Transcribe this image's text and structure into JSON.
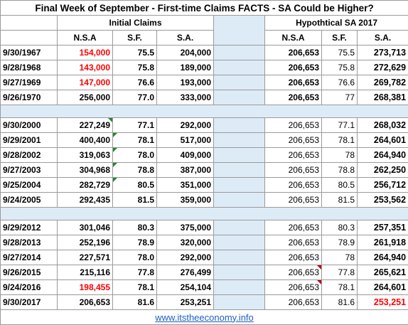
{
  "title": "Final Week of September - First-time Claims FACTS - SA Could be Higher?",
  "groups": {
    "initial": "Initial Claims",
    "hypothetical": "Hypothtical SA 2017"
  },
  "columns": {
    "nsa": "N.S.A",
    "sf": "S.F.",
    "sa": "S.A."
  },
  "sections": [
    [
      {
        "date": "9/30/1967",
        "nsa": "154,000",
        "sf": "75.5",
        "sa": "204,000",
        "h_nsa": "206,653",
        "h_sf": "75.5",
        "h_sa": "273,713"
      },
      {
        "date": "9/28/1968",
        "nsa": "143,000",
        "sf": "75.8",
        "sa": "189,000",
        "h_nsa": "206,653",
        "h_sf": "75.8",
        "h_sa": "272,629"
      },
      {
        "date": "9/27/1969",
        "nsa": "147,000",
        "sf": "76.6",
        "sa": "193,000",
        "h_nsa": "206,653",
        "h_sf": "76.6",
        "h_sa": "269,782"
      },
      {
        "date": "9/26/1970",
        "nsa": "256,000",
        "sf": "77.0",
        "sa": "333,000",
        "h_nsa": "206,653",
        "h_sf": "77",
        "h_sa": "268,381"
      }
    ],
    [
      {
        "date": "9/30/2000",
        "nsa": "227,249",
        "sf": "77.1",
        "sa": "292,000",
        "h_nsa": "206,653",
        "h_sf": "77.1",
        "h_sa": "268,032"
      },
      {
        "date": "9/29/2001",
        "nsa": "400,400",
        "sf": "78.1",
        "sa": "517,000",
        "h_nsa": "206,653",
        "h_sf": "78.1",
        "h_sa": "264,601"
      },
      {
        "date": "9/28/2002",
        "nsa": "319,063",
        "sf": "78.0",
        "sa": "409,000",
        "h_nsa": "206,653",
        "h_sf": "78",
        "h_sa": "264,940"
      },
      {
        "date": "9/27/2003",
        "nsa": "304,968",
        "sf": "78.8",
        "sa": "387,000",
        "h_nsa": "206,653",
        "h_sf": "78.8",
        "h_sa": "262,250"
      },
      {
        "date": "9/25/2004",
        "nsa": "282,729",
        "sf": "80.5",
        "sa": "351,000",
        "h_nsa": "206,653",
        "h_sf": "80.5",
        "h_sa": "256,712"
      },
      {
        "date": "9/24/2005",
        "nsa": "292,435",
        "sf": "81.5",
        "sa": "359,000",
        "h_nsa": "206,653",
        "h_sf": "81.5",
        "h_sa": "253,562"
      }
    ],
    [
      {
        "date": "9/29/2012",
        "nsa": "301,046",
        "sf": "80.3",
        "sa": "375,000",
        "h_nsa": "206,653",
        "h_sf": "80.3",
        "h_sa": "257,351"
      },
      {
        "date": "9/28/2013",
        "nsa": "252,196",
        "sf": "78.9",
        "sa": "320,000",
        "h_nsa": "206,653",
        "h_sf": "78.9",
        "h_sa": "261,918"
      },
      {
        "date": "9/27/2014",
        "nsa": "227,571",
        "sf": "78.0",
        "sa": "292,000",
        "h_nsa": "206,653",
        "h_sf": "78",
        "h_sa": "264,940"
      },
      {
        "date": "9/26/2015",
        "nsa": "215,116",
        "sf": "77.8",
        "sa": "276,499",
        "h_nsa": "206,653",
        "h_sf": "77.8",
        "h_sa": "265,621"
      },
      {
        "date": "9/24/2016",
        "nsa": "198,455",
        "sf": "78.1",
        "sa": "254,104",
        "h_nsa": "206,653",
        "h_sf": "78.1",
        "h_sa": "264,601"
      },
      {
        "date": "9/30/2017",
        "nsa": "206,653",
        "sf": "81.6",
        "sa": "253,251",
        "h_nsa": "206,653",
        "h_sf": "81.6",
        "h_sa": "253,251"
      }
    ]
  ],
  "colors": {
    "red": "#ff0000",
    "spacer_fill": "#ddebf7",
    "link": "#1f5fbf",
    "comment_green": "#1f8a2e",
    "comment_red": "#c00000"
  },
  "source_link": "www.itstheeconomy.info"
}
